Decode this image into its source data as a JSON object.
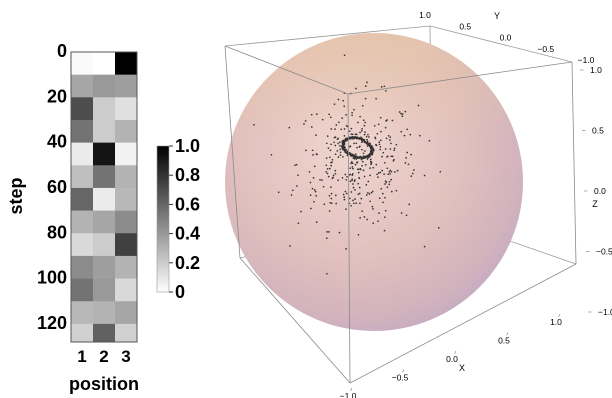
{
  "chart_data": [
    {
      "type": "heatmap",
      "title": "",
      "xlabel": "position",
      "ylabel": "step",
      "x_categories": [
        "1",
        "2",
        "3"
      ],
      "y_ticks": [
        "0",
        "20",
        "40",
        "60",
        "80",
        "100",
        "120"
      ],
      "y_range": [
        0,
        128
      ],
      "row_step": 10,
      "values": [
        [
          0.02,
          0.0,
          1.0
        ],
        [
          0.35,
          0.4,
          0.38
        ],
        [
          0.7,
          0.2,
          0.12
        ],
        [
          0.55,
          0.2,
          0.3
        ],
        [
          0.08,
          0.92,
          0.05
        ],
        [
          0.25,
          0.55,
          0.3
        ],
        [
          0.6,
          0.08,
          0.28
        ],
        [
          0.3,
          0.35,
          0.45
        ],
        [
          0.15,
          0.2,
          0.75
        ],
        [
          0.45,
          0.38,
          0.3
        ],
        [
          0.55,
          0.4,
          0.15
        ],
        [
          0.28,
          0.3,
          0.35
        ],
        [
          0.18,
          0.62,
          0.18
        ]
      ],
      "colorbar": {
        "ticks": [
          "0",
          "0.2",
          "0.4",
          "0.6",
          "0.8",
          "1.0"
        ],
        "range": [
          0,
          1
        ],
        "colors": [
          "#ffffff",
          "#000000"
        ]
      },
      "grid": false
    },
    {
      "type": "scatter",
      "title": "",
      "projection": "3d",
      "surface": "unit sphere",
      "surface_color": "#e8c8c4",
      "point_color": "#333333",
      "xlabel": "X",
      "ylabel": "Y",
      "zlabel": "Z",
      "xlim": [
        -1.0,
        1.0
      ],
      "ylim": [
        -1.0,
        1.0
      ],
      "zlim": [
        -1.0,
        1.0
      ],
      "x_ticks": [
        "−1.0",
        "−0.5",
        "0.0",
        "0.5",
        "1.0"
      ],
      "y_ticks": [
        "1.0",
        "0.5",
        "0.0",
        "−0.5",
        "−1.0"
      ],
      "z_ticks": [
        "1.0",
        "0.5",
        "0.0",
        "−0.5",
        "−1.0"
      ],
      "ring": {
        "center_x": -0.11,
        "center_z": 0.23,
        "radius_x": 0.1,
        "radius_z": 0.065,
        "points": 200
      },
      "scatter_points": 360
    }
  ]
}
